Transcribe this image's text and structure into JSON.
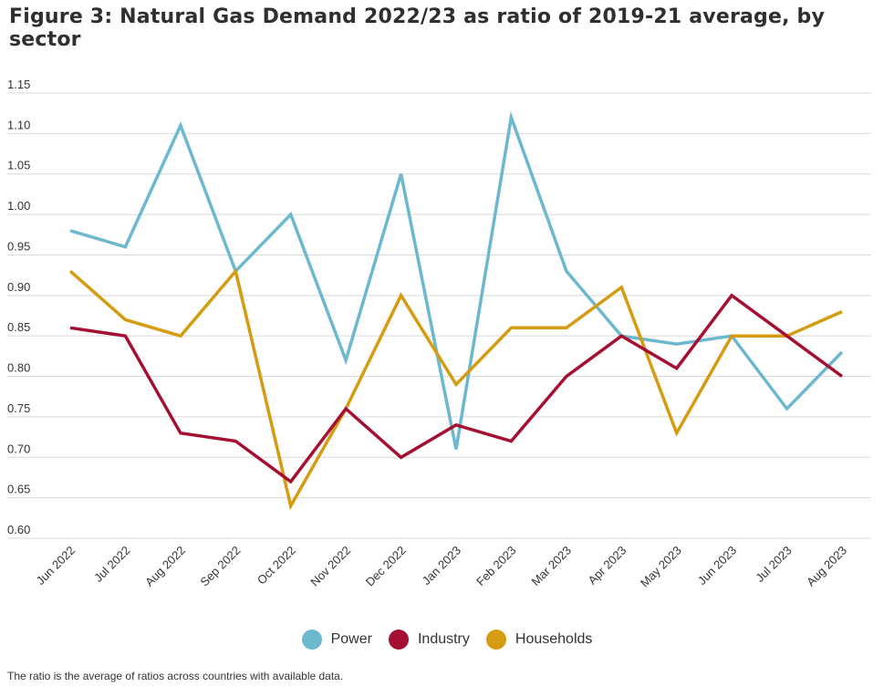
{
  "title": "Figure 3: Natural Gas Demand 2022/23 as ratio of 2019-21 average, by sector",
  "footnote": "The ratio is the average of ratios across countries with available data.",
  "chart_data": {
    "type": "line",
    "title": "Figure 3: Natural Gas Demand 2022/23 as ratio of 2019-21 average, by sector",
    "xlabel": "",
    "ylabel": "",
    "ylim": [
      0.6,
      1.15
    ],
    "yticks": [
      "0.60",
      "0.65",
      "0.70",
      "0.75",
      "0.80",
      "0.85",
      "0.90",
      "0.95",
      "1.00",
      "1.05",
      "1.10",
      "1.15"
    ],
    "grid": true,
    "legend_position": "bottom",
    "categories": [
      "Jun 2022",
      "Jul 2022",
      "Aug 2022",
      "Sep 2022",
      "Oct 2022",
      "Nov 2022",
      "Dec 2022",
      "Jan 2023",
      "Feb 2023",
      "Mar 2023",
      "Apr 2023",
      "May 2023",
      "Jun 2023",
      "Jul 2023",
      "Aug 2023"
    ],
    "series": [
      {
        "name": "Power",
        "color": "#6cb8cf",
        "values": [
          0.98,
          0.96,
          1.11,
          0.93,
          1.0,
          0.82,
          1.05,
          0.71,
          1.12,
          0.93,
          0.85,
          0.84,
          0.85,
          0.76,
          0.83
        ]
      },
      {
        "name": "Industry",
        "color": "#a50f32",
        "values": [
          0.86,
          0.85,
          0.73,
          0.72,
          0.67,
          0.76,
          0.7,
          0.74,
          0.72,
          0.8,
          0.85,
          0.81,
          0.9,
          0.85,
          0.8
        ]
      },
      {
        "name": "Households",
        "color": "#d59c12",
        "values": [
          0.93,
          0.87,
          0.85,
          0.93,
          0.64,
          0.76,
          0.9,
          0.79,
          0.86,
          0.86,
          0.91,
          0.73,
          0.85,
          0.85,
          0.88
        ]
      }
    ]
  }
}
